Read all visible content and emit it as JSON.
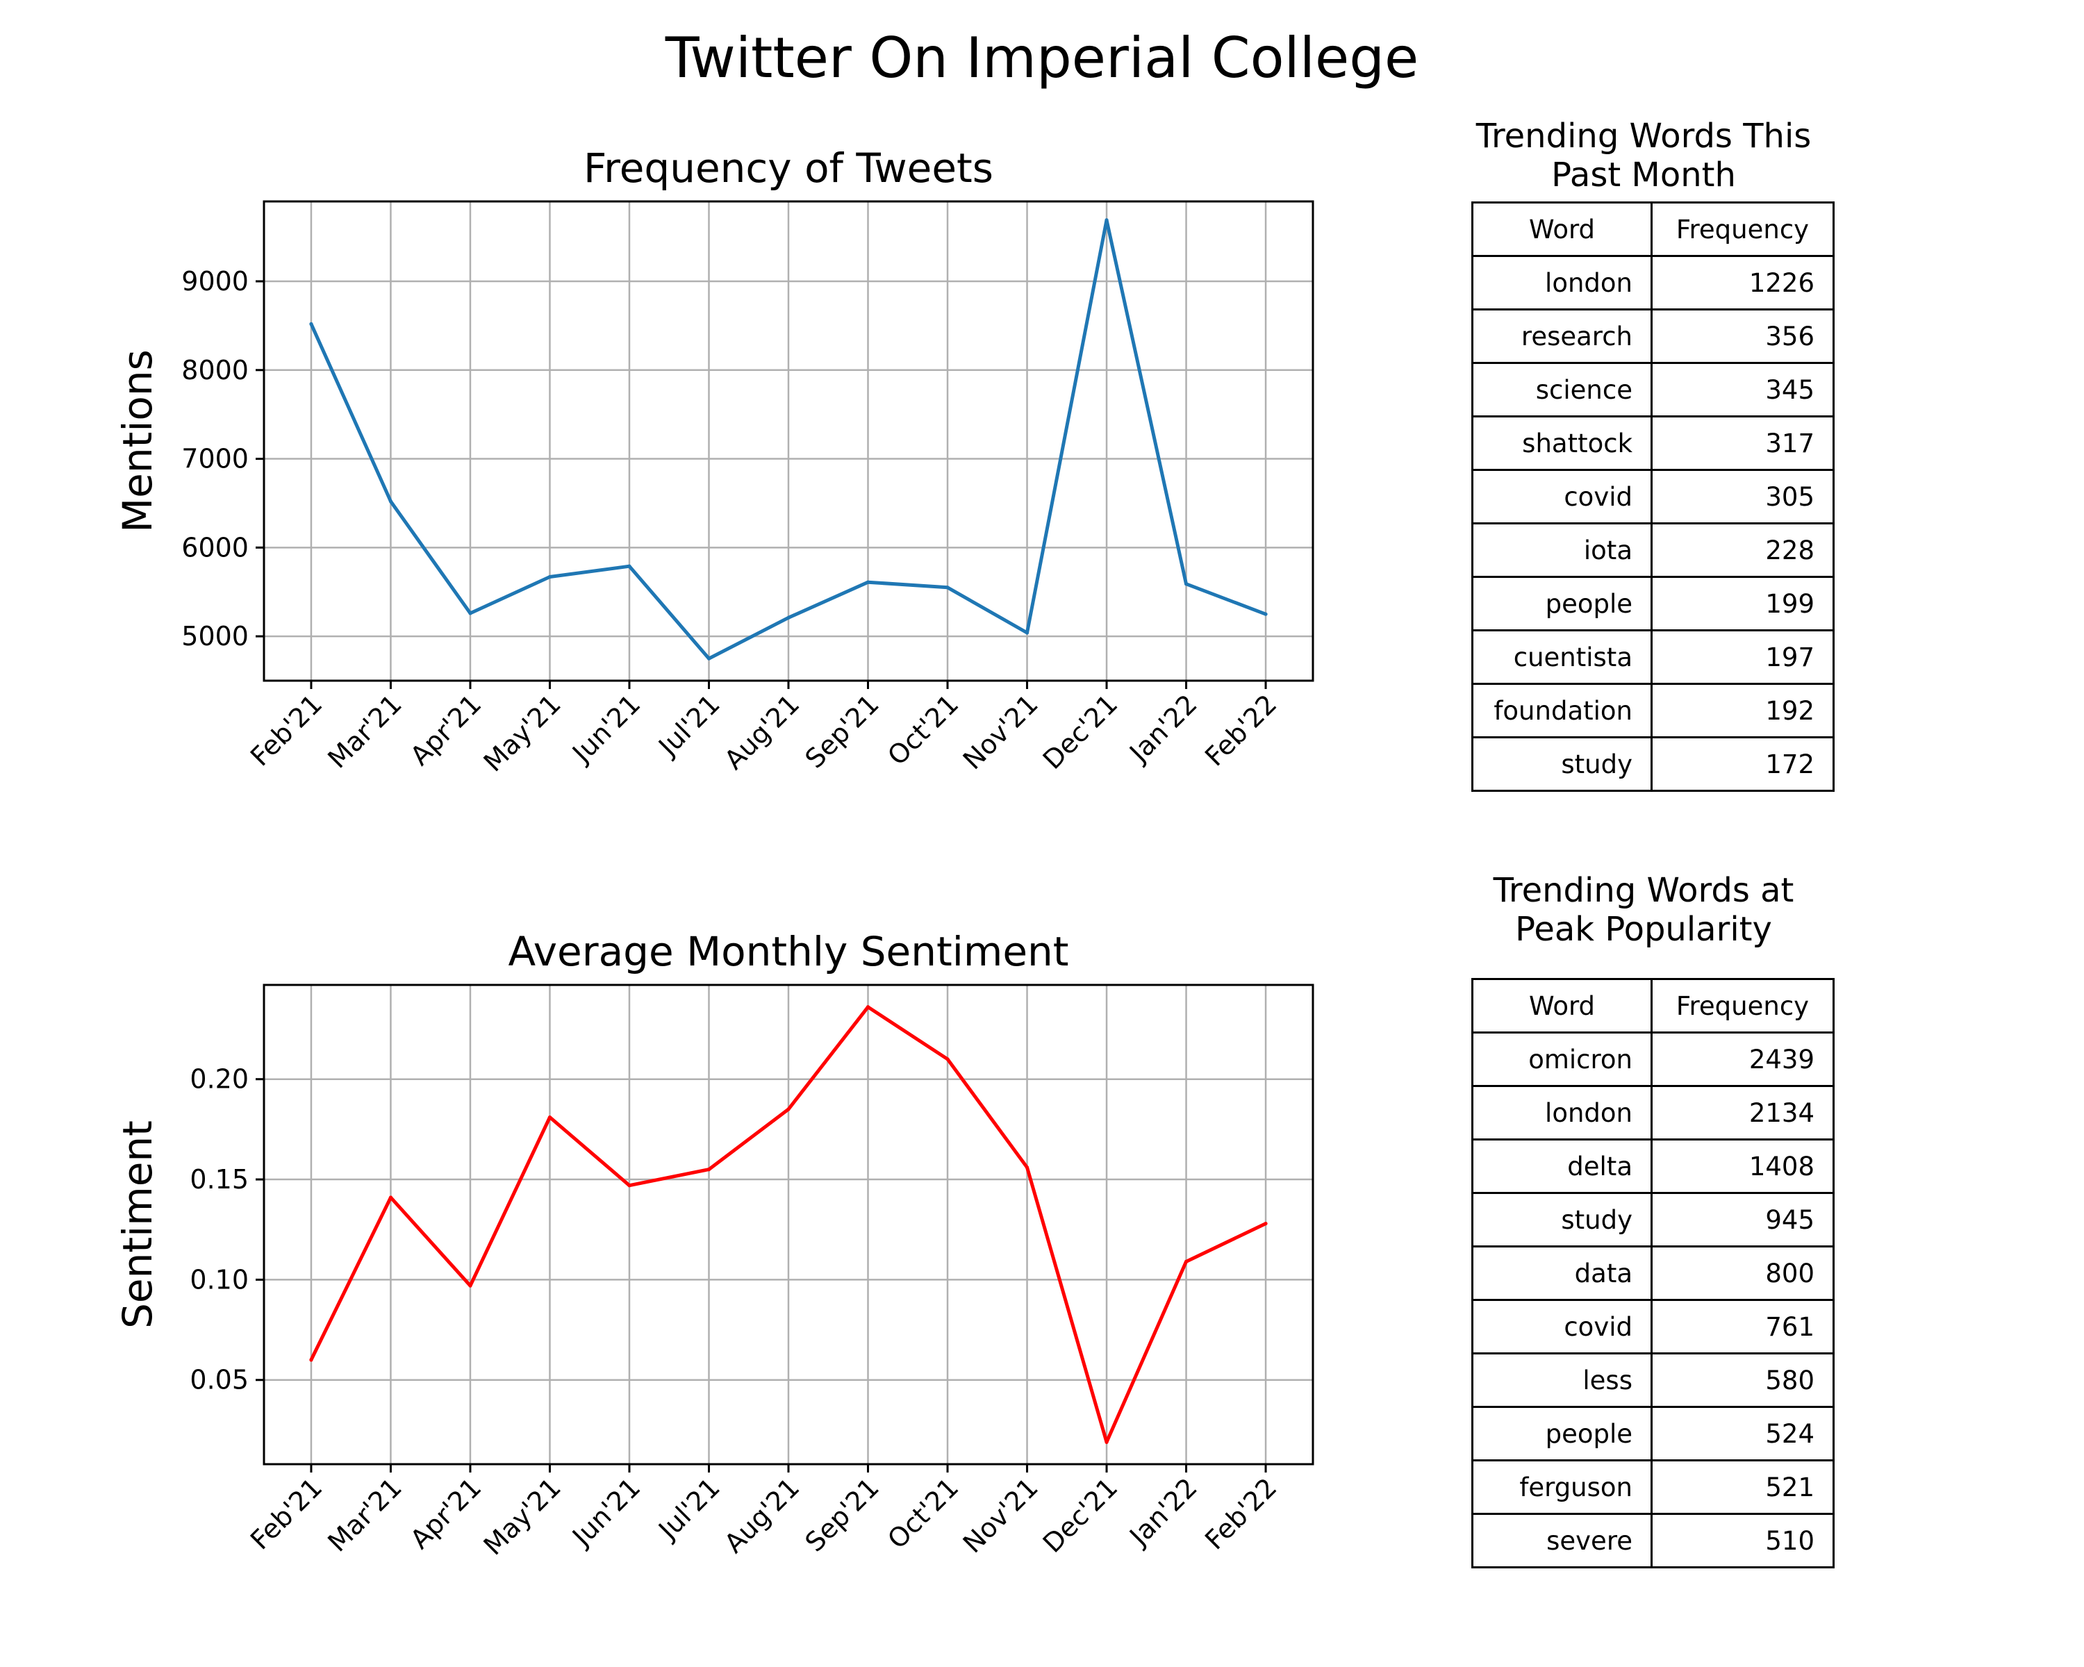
{
  "figure": {
    "title": "Twitter On Imperial College"
  },
  "chart_data": [
    {
      "type": "line",
      "title": "Frequency of Tweets",
      "xlabel": "",
      "ylabel": "Mentions",
      "x": [
        "Feb'21",
        "Mar'21",
        "Apr'21",
        "May'21",
        "Jun'21",
        "Jul'21",
        "Aug'21",
        "Sep'21",
        "Oct'21",
        "Nov'21",
        "Dec'21",
        "Jan'22",
        "Feb'22"
      ],
      "series": [
        {
          "values": [
            8520,
            6520,
            5260,
            5670,
            5790,
            4750,
            5210,
            5610,
            5550,
            5040,
            9690,
            5590,
            5250
          ],
          "color": "#1f77b4"
        }
      ],
      "ylim": [
        4500,
        9900
      ],
      "yticks": [
        5000,
        6000,
        7000,
        8000,
        9000
      ],
      "yticklabels": [
        "5000",
        "6000",
        "7000",
        "8000",
        "9000"
      ],
      "grid": true
    },
    {
      "type": "line",
      "title": "Average Monthly Sentiment",
      "xlabel": "",
      "ylabel": "Sentiment",
      "x": [
        "Feb'21",
        "Mar'21",
        "Apr'21",
        "May'21",
        "Jun'21",
        "Jul'21",
        "Aug'21",
        "Sep'21",
        "Oct'21",
        "Nov'21",
        "Dec'21",
        "Jan'22",
        "Feb'22"
      ],
      "series": [
        {
          "values": [
            0.06,
            0.141,
            0.097,
            0.181,
            0.147,
            0.155,
            0.185,
            0.236,
            0.21,
            0.156,
            0.019,
            0.109,
            0.128
          ],
          "color": "#ff0000"
        }
      ],
      "ylim": [
        0.008,
        0.247
      ],
      "yticks": [
        0.05,
        0.1,
        0.15,
        0.2
      ],
      "yticklabels": [
        "0.05",
        "0.10",
        "0.15",
        "0.20"
      ],
      "grid": true
    }
  ],
  "tables": [
    {
      "title_lines": [
        "Trending Words This",
        "Past Month"
      ],
      "headers": [
        "Word",
        "Frequency"
      ],
      "rows": [
        [
          "london",
          "1226"
        ],
        [
          "research",
          "356"
        ],
        [
          "science",
          "345"
        ],
        [
          "shattock",
          "317"
        ],
        [
          "covid",
          "305"
        ],
        [
          "iota",
          "228"
        ],
        [
          "people",
          "199"
        ],
        [
          "cuentista",
          "197"
        ],
        [
          "foundation",
          "192"
        ],
        [
          "study",
          "172"
        ]
      ]
    },
    {
      "title_lines": [
        "Trending Words at",
        "Peak Popularity"
      ],
      "headers": [
        "Word",
        "Frequency"
      ],
      "rows": [
        [
          "omicron",
          "2439"
        ],
        [
          "london",
          "2134"
        ],
        [
          "delta",
          "1408"
        ],
        [
          "study",
          "945"
        ],
        [
          "data",
          "800"
        ],
        [
          "covid",
          "761"
        ],
        [
          "less",
          "580"
        ],
        [
          "people",
          "524"
        ],
        [
          "ferguson",
          "521"
        ],
        [
          "severe",
          "510"
        ]
      ]
    }
  ]
}
